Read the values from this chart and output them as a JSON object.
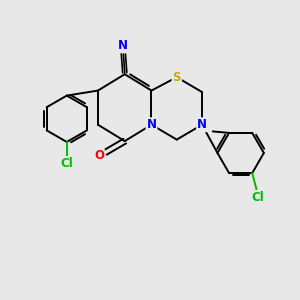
{
  "background_color": "#e8e8e8",
  "bond_color": "#000000",
  "atom_colors": {
    "Cl": "#00bb00",
    "N": "#0000ff",
    "O": "#ff0000",
    "S": "#ccaa00",
    "C": "#000000"
  },
  "figsize": [
    3.0,
    3.0
  ],
  "dpi": 100
}
